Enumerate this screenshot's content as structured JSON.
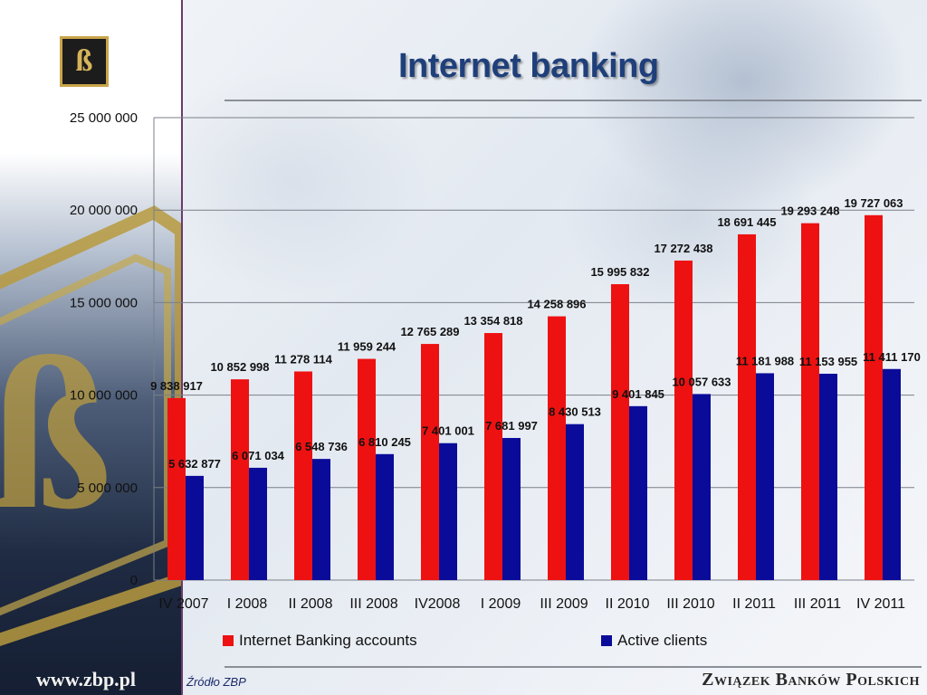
{
  "slide": {
    "title": "Internet banking",
    "logo_glyph": "ß",
    "url": "www.zbp.pl",
    "source": "Źródło ZBP",
    "organization": "Związek Banków Polskich"
  },
  "colors": {
    "series1": "#ee1111",
    "series2": "#0b0b9a",
    "title": "#1f3f7a",
    "gridline": "#7a7f88"
  },
  "chart_data": {
    "type": "bar",
    "title": "Internet banking",
    "xlabel": "",
    "ylabel": "",
    "categories": [
      "IV 2007",
      "I 2008",
      "II 2008",
      "III 2008",
      "IV2008",
      "I 2009",
      "III 2009",
      "II 2010",
      "III 2010",
      "II 2011",
      "III 2011",
      "IV 2011"
    ],
    "series": [
      {
        "name": "Internet Banking accounts",
        "values": [
          9838917,
          10852998,
          11278114,
          11959244,
          12765289,
          13354818,
          14258896,
          15995832,
          17272438,
          18691445,
          19293248,
          19727063
        ],
        "labels": [
          "9 838 917",
          "10 852 998",
          "11 278 114",
          "11 959 244",
          "12 765 289",
          "13 354 818",
          "14 258 896",
          "15 995 832",
          "17 272 438",
          "18 691 445",
          "19 293 248",
          "19 727 063"
        ]
      },
      {
        "name": "Active clients",
        "values": [
          5632877,
          6071034,
          6548736,
          6810245,
          7401001,
          7681997,
          8430513,
          9401845,
          10057633,
          11181988,
          11153955,
          11411170
        ],
        "labels": [
          "5 632 877",
          "6 071 034",
          "6 548 736",
          "6 810 245",
          "7 401 001",
          "7 681 997",
          "8 430 513",
          "9 401 845",
          "10 057 633",
          "11 181 988",
          "11 153 955",
          "11 411 170"
        ]
      }
    ],
    "ylim": [
      0,
      25000000
    ],
    "yticks": [
      0,
      5000000,
      10000000,
      15000000,
      20000000,
      25000000
    ],
    "ytick_labels": [
      "0",
      "5 000 000",
      "10 000 000",
      "15 000 000",
      "20 000 000",
      "25 000 000"
    ],
    "grid": true,
    "legend_position": "bottom"
  }
}
